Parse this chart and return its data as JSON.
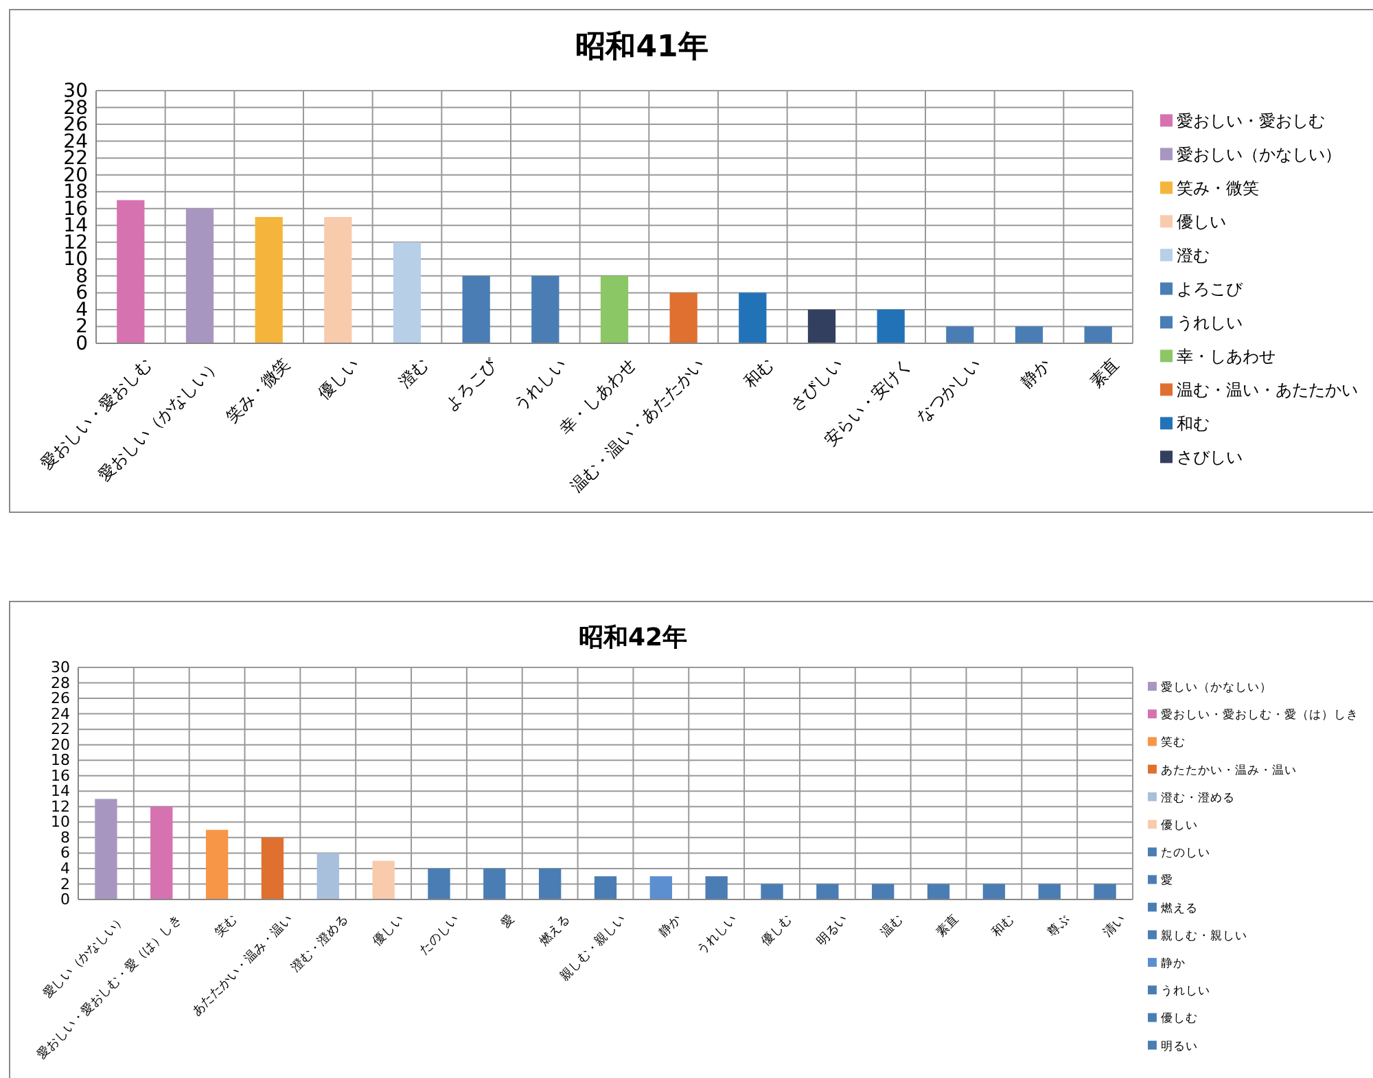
{
  "chart_data": [
    {
      "type": "bar",
      "title": "昭和41年",
      "stacked": true,
      "categories": [
        "愛おしい・愛おしむ",
        "愛おしい（かなしい）",
        "笑み・微笑",
        "優しい",
        "澄む",
        "よろこび",
        "うれしい",
        "幸・しあわせ",
        "温む・温い・あたたかい",
        "和む",
        "さびしい",
        "安らい・安けく",
        "なつかしい",
        "静か",
        "素直"
      ],
      "series": [
        {
          "name": "愛おしい・愛おしむ",
          "color": "#d672b0",
          "values": [
            17,
            null,
            null,
            null,
            null,
            null,
            null,
            null,
            null,
            null,
            null,
            null,
            null,
            null,
            null
          ]
        },
        {
          "name": "愛おしい（かなしい）",
          "color": "#a797c0",
          "values": [
            null,
            16,
            null,
            null,
            null,
            null,
            null,
            null,
            null,
            null,
            null,
            null,
            null,
            null,
            null
          ]
        },
        {
          "name": "笑み・微笑",
          "color": "#f5b53d",
          "values": [
            null,
            null,
            15,
            null,
            null,
            null,
            null,
            null,
            null,
            null,
            null,
            null,
            null,
            null,
            null
          ]
        },
        {
          "name": "優しい",
          "color": "#f8cbad",
          "values": [
            null,
            null,
            null,
            15,
            null,
            null,
            null,
            null,
            null,
            null,
            null,
            null,
            null,
            null,
            null
          ]
        },
        {
          "name": "澄む",
          "color": "#b8cfe8",
          "values": [
            null,
            null,
            null,
            null,
            12,
            null,
            null,
            null,
            null,
            null,
            null,
            null,
            null,
            null,
            null
          ]
        },
        {
          "name": "よろこび",
          "color": "#4a7db4",
          "values": [
            null,
            null,
            null,
            null,
            null,
            8,
            null,
            null,
            null,
            null,
            null,
            null,
            null,
            null,
            null
          ]
        },
        {
          "name": "うれしい",
          "color": "#4a7db4",
          "values": [
            null,
            null,
            null,
            null,
            null,
            null,
            8,
            null,
            null,
            null,
            null,
            null,
            null,
            null,
            null
          ]
        },
        {
          "name": "幸・しあわせ",
          "color": "#8bc765",
          "values": [
            null,
            null,
            null,
            null,
            null,
            null,
            null,
            8,
            null,
            null,
            null,
            null,
            null,
            null,
            null
          ]
        },
        {
          "name": "温む・温い・あたたかい",
          "color": "#e07030",
          "values": [
            null,
            null,
            null,
            null,
            null,
            null,
            null,
            null,
            6,
            null,
            null,
            null,
            null,
            null,
            null
          ]
        },
        {
          "name": "和む",
          "color": "#2272b8",
          "values": [
            null,
            null,
            null,
            null,
            null,
            null,
            null,
            null,
            null,
            6,
            null,
            null,
            null,
            null,
            null
          ]
        },
        {
          "name": "さびしい",
          "color": "#333f5e",
          "values": [
            null,
            null,
            null,
            null,
            null,
            null,
            null,
            null,
            null,
            null,
            4,
            null,
            null,
            null,
            null
          ]
        },
        {
          "color": "#2272b8",
          "values": [
            null,
            null,
            null,
            null,
            null,
            null,
            null,
            null,
            null,
            null,
            null,
            4,
            null,
            null,
            null
          ]
        },
        {
          "color": "#4a7db4",
          "values": [
            null,
            null,
            null,
            null,
            null,
            null,
            null,
            null,
            null,
            null,
            null,
            null,
            2,
            null,
            null
          ]
        },
        {
          "color": "#4a7db4",
          "values": [
            null,
            null,
            null,
            null,
            null,
            null,
            null,
            null,
            null,
            null,
            null,
            null,
            null,
            2,
            null
          ]
        },
        {
          "color": "#4a7db4",
          "values": [
            null,
            null,
            null,
            null,
            null,
            null,
            null,
            null,
            null,
            null,
            null,
            null,
            null,
            null,
            2
          ]
        }
      ],
      "ylim": [
        0,
        30
      ],
      "yticks": [
        0,
        2,
        4,
        6,
        8,
        10,
        12,
        14,
        16,
        18,
        20,
        22,
        24,
        26,
        28,
        30
      ],
      "grid": true,
      "legend": "right"
    },
    {
      "type": "bar",
      "title": "昭和42年",
      "stacked": true,
      "categories": [
        "愛しい（かなしい）",
        "愛おしい・愛おしむ・愛（は）しき",
        "笑む",
        "あたたかい・温み・温い",
        "澄む・澄める",
        "優しい",
        "たのしい",
        "愛",
        "燃える",
        "親しむ・親しい",
        "静か",
        "うれしい",
        "優しむ",
        "明るい",
        "温む",
        "素直",
        "和む",
        "尊ぶ",
        "清い"
      ],
      "series": [
        {
          "name": "愛しい（かなしい）",
          "color": "#a797c0",
          "values": [
            13,
            null,
            null,
            null,
            null,
            null,
            null,
            null,
            null,
            null,
            null,
            null,
            null,
            null,
            null,
            null,
            null,
            null,
            null
          ]
        },
        {
          "name": "愛おしい・愛おしむ・愛（は）しき",
          "color": "#d672b0",
          "values": [
            null,
            12,
            null,
            null,
            null,
            null,
            null,
            null,
            null,
            null,
            null,
            null,
            null,
            null,
            null,
            null,
            null,
            null,
            null
          ]
        },
        {
          "name": "笑む",
          "color": "#f79646",
          "values": [
            null,
            null,
            9,
            null,
            null,
            null,
            null,
            null,
            null,
            null,
            null,
            null,
            null,
            null,
            null,
            null,
            null,
            null,
            null
          ]
        },
        {
          "name": "あたたかい・温み・温い",
          "color": "#e07030",
          "values": [
            null,
            null,
            null,
            8,
            null,
            null,
            null,
            null,
            null,
            null,
            null,
            null,
            null,
            null,
            null,
            null,
            null,
            null,
            null
          ]
        },
        {
          "name": "澄む・澄める",
          "color": "#a8c0dc",
          "values": [
            null,
            null,
            null,
            null,
            6,
            null,
            null,
            null,
            null,
            null,
            null,
            null,
            null,
            null,
            null,
            null,
            null,
            null,
            null
          ]
        },
        {
          "name": "優しい",
          "color": "#f8cbad",
          "values": [
            null,
            null,
            null,
            null,
            null,
            5,
            null,
            null,
            null,
            null,
            null,
            null,
            null,
            null,
            null,
            null,
            null,
            null,
            null
          ]
        },
        {
          "name": "たのしい",
          "color": "#4a7db4",
          "values": [
            null,
            null,
            null,
            null,
            null,
            null,
            4,
            null,
            null,
            null,
            null,
            null,
            null,
            null,
            null,
            null,
            null,
            null,
            null
          ]
        },
        {
          "name": "愛",
          "color": "#4a7db4",
          "values": [
            null,
            null,
            null,
            null,
            null,
            null,
            null,
            4,
            null,
            null,
            null,
            null,
            null,
            null,
            null,
            null,
            null,
            null,
            null
          ]
        },
        {
          "name": "燃える",
          "color": "#4a7db4",
          "values": [
            null,
            null,
            null,
            null,
            null,
            null,
            null,
            null,
            4,
            null,
            null,
            null,
            null,
            null,
            null,
            null,
            null,
            null,
            null
          ]
        },
        {
          "name": "親しむ・親しい",
          "color": "#4a7db4",
          "values": [
            null,
            null,
            null,
            null,
            null,
            null,
            null,
            null,
            null,
            3,
            null,
            null,
            null,
            null,
            null,
            null,
            null,
            null,
            null
          ]
        },
        {
          "name": "静か",
          "color": "#5b8fd0",
          "values": [
            null,
            null,
            null,
            null,
            null,
            null,
            null,
            null,
            null,
            null,
            3,
            null,
            null,
            null,
            null,
            null,
            null,
            null,
            null
          ]
        },
        {
          "name": "うれしい",
          "color": "#4a7db4",
          "values": [
            null,
            null,
            null,
            null,
            null,
            null,
            null,
            null,
            null,
            null,
            null,
            3,
            null,
            null,
            null,
            null,
            null,
            null,
            null
          ]
        },
        {
          "name": "優しむ",
          "color": "#4a7db4",
          "values": [
            null,
            null,
            null,
            null,
            null,
            null,
            null,
            null,
            null,
            null,
            null,
            null,
            2,
            null,
            null,
            null,
            null,
            null,
            null
          ]
        },
        {
          "name": "明るい",
          "color": "#4a7db4",
          "values": [
            null,
            null,
            null,
            null,
            null,
            null,
            null,
            null,
            null,
            null,
            null,
            null,
            null,
            2,
            null,
            null,
            null,
            null,
            null
          ]
        },
        {
          "color": "#4a7db4",
          "values": [
            null,
            null,
            null,
            null,
            null,
            null,
            null,
            null,
            null,
            null,
            null,
            null,
            null,
            null,
            2,
            null,
            null,
            null,
            null
          ]
        },
        {
          "color": "#4a7db4",
          "values": [
            null,
            null,
            null,
            null,
            null,
            null,
            null,
            null,
            null,
            null,
            null,
            null,
            null,
            null,
            null,
            2,
            null,
            null,
            null
          ]
        },
        {
          "color": "#4a7db4",
          "values": [
            null,
            null,
            null,
            null,
            null,
            null,
            null,
            null,
            null,
            null,
            null,
            null,
            null,
            null,
            null,
            null,
            2,
            null,
            null
          ]
        },
        {
          "color": "#4a7db4",
          "values": [
            null,
            null,
            null,
            null,
            null,
            null,
            null,
            null,
            null,
            null,
            null,
            null,
            null,
            null,
            null,
            null,
            null,
            2,
            null
          ]
        },
        {
          "color": "#4a7db4",
          "values": [
            null,
            null,
            null,
            null,
            null,
            null,
            null,
            null,
            null,
            null,
            null,
            null,
            null,
            null,
            null,
            null,
            null,
            null,
            2
          ]
        }
      ],
      "ylim": [
        0,
        30
      ],
      "yticks": [
        0,
        2,
        4,
        6,
        8,
        10,
        12,
        14,
        16,
        18,
        20,
        22,
        24,
        26,
        28,
        30
      ],
      "grid": true,
      "legend": "right"
    }
  ]
}
